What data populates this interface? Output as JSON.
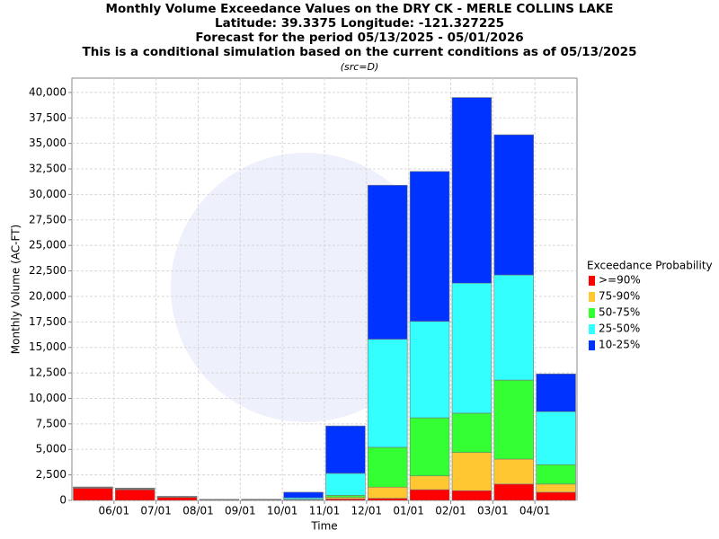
{
  "chart_data": {
    "type": "stacked_bar",
    "title": [
      "Monthly Volume Exceedance Values on the DRY CK - MERLE COLLINS LAKE",
      "Latitude: 39.3375 Longitude: -121.327225",
      "Forecast for the period 05/13/2025 - 05/01/2026",
      "This is a conditional simulation based on the current conditions as of 05/13/2025"
    ],
    "subtitle": "(src=D)",
    "x_label": "Time",
    "y_label": "Monthly Volume (AC-FT)",
    "legend_title": "Exceedance Probability",
    "legend_position": "right",
    "grid": true,
    "xticks": [
      "06/01",
      "07/01",
      "08/01",
      "09/01",
      "10/01",
      "11/01",
      "12/01",
      "01/01",
      "02/01",
      "03/01",
      "04/01"
    ],
    "ylim": [
      0,
      41400
    ],
    "yticks": [
      0,
      {
        "value": 2500,
        "label": "2,500"
      },
      {
        "value": 5000,
        "label": "5,000"
      },
      {
        "value": 7500,
        "label": "7,500"
      },
      {
        "value": 10000,
        "label": "10,000"
      },
      {
        "value": 12500,
        "label": "12,500"
      },
      {
        "value": 15000,
        "label": "15,000"
      },
      {
        "value": 17500,
        "label": "17,500"
      },
      {
        "value": 20000,
        "label": "20,000"
      },
      {
        "value": 22500,
        "label": "22,500"
      },
      {
        "value": 25000,
        "label": "25,000"
      },
      {
        "value": 27500,
        "label": "27,500"
      },
      {
        "value": 30000,
        "label": "30,000"
      },
      {
        "value": 32500,
        "label": "32,500"
      },
      {
        "value": 35000,
        "label": "35,000"
      },
      {
        "value": 37500,
        "label": "37,500"
      },
      {
        "value": 40000,
        "label": "40,000"
      }
    ],
    "series": [
      {
        "name": ">=90%",
        "color": "#ff0000",
        "values": [
          1200,
          1050,
          300,
          50,
          30,
          30,
          150,
          200,
          1050,
          950,
          1600,
          800
        ]
      },
      {
        "name": "75-90%",
        "color": "#ffc833",
        "values": [
          30,
          40,
          25,
          12,
          10,
          20,
          150,
          1100,
          1350,
          3750,
          2450,
          800
        ]
      },
      {
        "name": "50-75%",
        "color": "#33ff33",
        "values": [
          30,
          40,
          25,
          12,
          10,
          50,
          200,
          3900,
          5700,
          3850,
          7750,
          1900
        ]
      },
      {
        "name": "25-50%",
        "color": "#33ffff",
        "values": [
          30,
          40,
          25,
          12,
          50,
          150,
          2150,
          10600,
          9450,
          12750,
          10300,
          5200
        ]
      },
      {
        "name": "10-25%",
        "color": "#0033ff",
        "values": [
          30,
          40,
          25,
          12,
          10,
          550,
          4650,
          15100,
          14700,
          18200,
          13750,
          3700
        ]
      }
    ]
  }
}
